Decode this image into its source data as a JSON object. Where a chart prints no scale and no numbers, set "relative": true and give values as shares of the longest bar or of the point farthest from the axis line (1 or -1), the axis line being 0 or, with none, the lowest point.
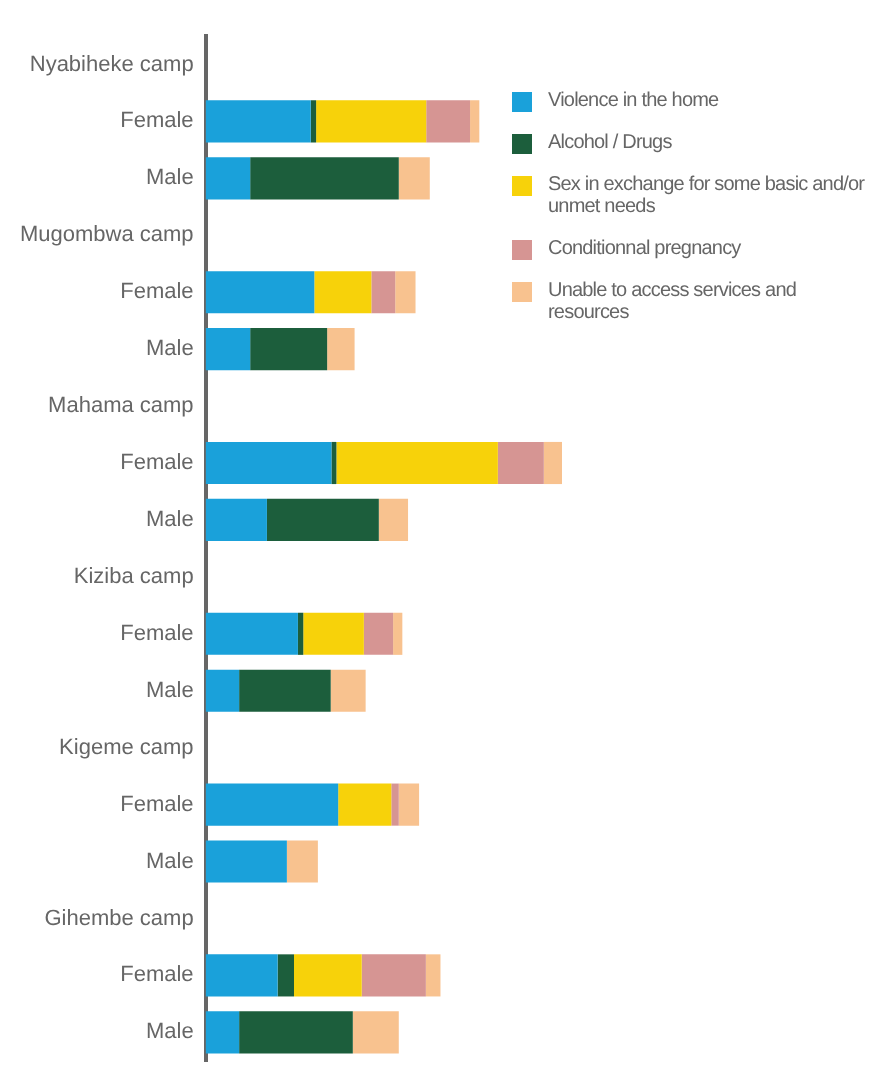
{
  "chart_data": {
    "type": "bar",
    "orientation": "horizontal",
    "stacked": true,
    "relative": true,
    "legend": "top right",
    "categories": [
      "Nyabiheke camp",
      "Female",
      "Male",
      "Mugombwa camp",
      "Female",
      "Male",
      "Mahama camp",
      "Female",
      "Male",
      "Kiziba camp",
      "Female",
      "Male",
      "Kigeme camp",
      "Female",
      "Male",
      "Gihembe camp",
      "Female",
      "Male"
    ],
    "series": [
      {
        "name": "Violence in the home",
        "color": "#1aa1da",
        "values": [
          null,
          0.295,
          0.125,
          null,
          0.305,
          0.125,
          null,
          0.353,
          0.172,
          null,
          0.259,
          0.094,
          null,
          0.372,
          0.228,
          null,
          0.202,
          0.094
        ]
      },
      {
        "name": "Alcohol / Drugs",
        "color": "#1c5e3c",
        "values": [
          null,
          0.015,
          0.417,
          null,
          null,
          0.216,
          null,
          0.014,
          0.314,
          null,
          0.015,
          0.257,
          null,
          null,
          null,
          null,
          0.046,
          0.319
        ]
      },
      {
        "name": "Sex in exchange for some basic and/or unmet needs",
        "color": "#f7d20a",
        "values": [
          null,
          0.309,
          null,
          null,
          0.16,
          null,
          null,
          0.453,
          null,
          null,
          0.17,
          null,
          null,
          0.149,
          null,
          null,
          0.19,
          null
        ]
      },
      {
        "name": "Conditionnal pregnancy",
        "color": "#d69593",
        "values": [
          null,
          0.123,
          null,
          null,
          0.067,
          null,
          null,
          0.129,
          null,
          null,
          0.082,
          null,
          null,
          0.021,
          null,
          null,
          0.18,
          null
        ]
      },
      {
        "name": "Unable to access services and resources",
        "color": "#f8c28f",
        "values": [
          null,
          0.026,
          0.087,
          null,
          0.057,
          0.077,
          null,
          0.051,
          0.082,
          null,
          0.026,
          0.098,
          null,
          0.057,
          0.087,
          null,
          0.041,
          0.129
        ]
      }
    ]
  }
}
